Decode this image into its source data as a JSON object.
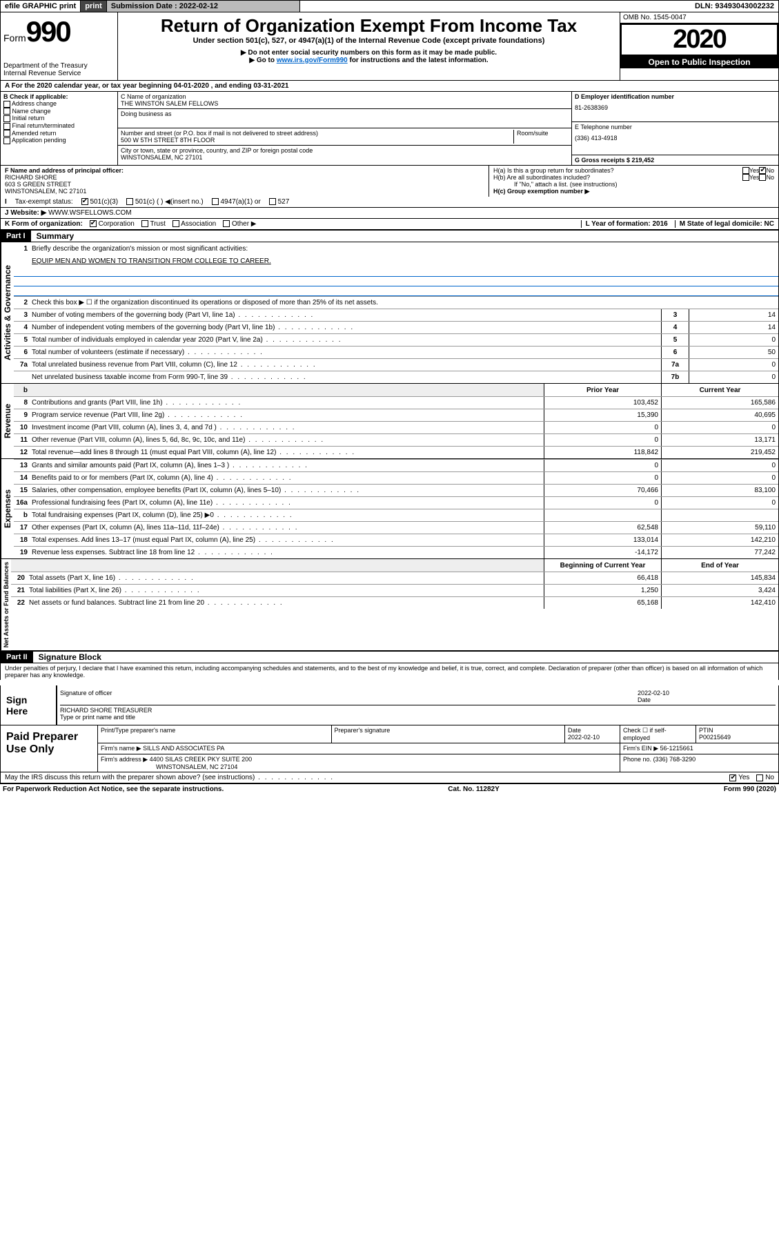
{
  "topbar": {
    "efile": "efile GRAPHIC print",
    "subdate_label": "Submission Date : 2022-02-12",
    "dln": "DLN: 93493043002232"
  },
  "header": {
    "form_label": "Form",
    "form_num": "990",
    "dept": "Department of the Treasury",
    "irs": "Internal Revenue Service",
    "title": "Return of Organization Exempt From Income Tax",
    "subtitle": "Under section 501(c), 527, or 4947(a)(1) of the Internal Revenue Code (except private foundations)",
    "instr1": "▶ Do not enter social security numbers on this form as it may be made public.",
    "instr2_pre": "▶ Go to ",
    "instr2_link": "www.irs.gov/Form990",
    "instr2_post": " for instructions and the latest information.",
    "omb": "OMB No. 1545-0047",
    "year": "2020",
    "open": "Open to Public Inspection"
  },
  "period": {
    "line": "For the 2020 calendar year, or tax year beginning 04-01-2020    , and ending 03-31-2021"
  },
  "boxB": {
    "label": "B Check if applicable:",
    "items": [
      "Address change",
      "Name change",
      "Initial return",
      "Final return/terminated",
      "Amended return",
      "Application pending"
    ]
  },
  "boxC": {
    "name_label": "C Name of organization",
    "name": "THE WINSTON SALEM FELLOWS",
    "dba_label": "Doing business as",
    "addr_label": "Number and street (or P.O. box if mail is not delivered to street address)",
    "room_label": "Room/suite",
    "addr": "500 W 5TH STREET 8TH FLOOR",
    "city_label": "City or town, state or province, country, and ZIP or foreign postal code",
    "city": "WINSTONSALEM, NC  27101"
  },
  "boxD": {
    "label": "D Employer identification number",
    "val": "81-2638369"
  },
  "boxE": {
    "label": "E Telephone number",
    "val": "(336) 413-4918"
  },
  "boxG": {
    "label": "G Gross receipts $ 219,452"
  },
  "boxF": {
    "label": "F  Name and address of principal officer:",
    "name": "RICHARD SHORE",
    "addr1": "603 S GREEN STREET",
    "addr2": "WINSTONSALEM, NC  27101"
  },
  "boxH": {
    "ha": "H(a)  Is this a group return for subordinates?",
    "hb": "H(b)  Are all subordinates included?",
    "hb_note": "If \"No,\" attach a list. (see instructions)",
    "hc": "H(c)  Group exemption number ▶",
    "yes": "Yes",
    "no": "No"
  },
  "boxI": {
    "label": "Tax-exempt status:",
    "opts": [
      "501(c)(3)",
      "501(c) (  ) ◀(insert no.)",
      "4947(a)(1) or",
      "527"
    ]
  },
  "boxJ": {
    "label": "J    Website: ▶",
    "val": "WWW.WSFELLOWS.COM"
  },
  "boxK": {
    "label": "K Form of organization:",
    "opts": [
      "Corporation",
      "Trust",
      "Association",
      "Other ▶"
    ]
  },
  "boxL": {
    "label": "L Year of formation: 2016"
  },
  "boxM": {
    "label": "M State of legal domicile: NC"
  },
  "part1": {
    "label": "Part I",
    "title": "Summary",
    "side1": "Activities & Governance",
    "side2": "Revenue",
    "side3": "Expenses",
    "side4": "Net Assets or Fund Balances",
    "l1": "Briefly describe the organization's mission or most significant activities:",
    "l1val": "EQUIP MEN AND WOMEN TO TRANSITION FROM COLLEGE TO CAREER.",
    "l2": "Check this box ▶ ☐  if the organization discontinued its operations or disposed of more than 25% of its net assets.",
    "rows_gov": [
      {
        "n": "3",
        "t": "Number of voting members of the governing body (Part VI, line 1a)",
        "c": "3",
        "v": "14"
      },
      {
        "n": "4",
        "t": "Number of independent voting members of the governing body (Part VI, line 1b)",
        "c": "4",
        "v": "14"
      },
      {
        "n": "5",
        "t": "Total number of individuals employed in calendar year 2020 (Part V, line 2a)",
        "c": "5",
        "v": "0"
      },
      {
        "n": "6",
        "t": "Total number of volunteers (estimate if necessary)",
        "c": "6",
        "v": "50"
      },
      {
        "n": "7a",
        "t": "Total unrelated business revenue from Part VIII, column (C), line 12",
        "c": "7a",
        "v": "0"
      },
      {
        "n": "  ",
        "t": "Net unrelated business taxable income from Form 990-T, line 39",
        "c": "7b",
        "v": "0"
      }
    ],
    "hdr_prior": "Prior Year",
    "hdr_curr": "Current Year",
    "rows_rev": [
      {
        "n": "8",
        "t": "Contributions and grants (Part VIII, line 1h)",
        "p": "103,452",
        "c": "165,586"
      },
      {
        "n": "9",
        "t": "Program service revenue (Part VIII, line 2g)",
        "p": "15,390",
        "c": "40,695"
      },
      {
        "n": "10",
        "t": "Investment income (Part VIII, column (A), lines 3, 4, and 7d )",
        "p": "0",
        "c": "0"
      },
      {
        "n": "11",
        "t": "Other revenue (Part VIII, column (A), lines 5, 6d, 8c, 9c, 10c, and 11e)",
        "p": "0",
        "c": "13,171"
      },
      {
        "n": "12",
        "t": "Total revenue—add lines 8 through 11 (must equal Part VIII, column (A), line 12)",
        "p": "118,842",
        "c": "219,452"
      }
    ],
    "rows_exp": [
      {
        "n": "13",
        "t": "Grants and similar amounts paid (Part IX, column (A), lines 1–3 )",
        "p": "0",
        "c": "0"
      },
      {
        "n": "14",
        "t": "Benefits paid to or for members (Part IX, column (A), line 4)",
        "p": "0",
        "c": "0"
      },
      {
        "n": "15",
        "t": "Salaries, other compensation, employee benefits (Part IX, column (A), lines 5–10)",
        "p": "70,466",
        "c": "83,100"
      },
      {
        "n": "16a",
        "t": "Professional fundraising fees (Part IX, column (A), line 11e)",
        "p": "0",
        "c": "0"
      },
      {
        "n": "b",
        "t": "Total fundraising expenses (Part IX, column (D), line 25) ▶0",
        "p": "",
        "c": "",
        "shaded": true
      },
      {
        "n": "17",
        "t": "Other expenses (Part IX, column (A), lines 11a–11d, 11f–24e)",
        "p": "62,548",
        "c": "59,110"
      },
      {
        "n": "18",
        "t": "Total expenses. Add lines 13–17 (must equal Part IX, column (A), line 25)",
        "p": "133,014",
        "c": "142,210"
      },
      {
        "n": "19",
        "t": "Revenue less expenses. Subtract line 18 from line 12",
        "p": "-14,172",
        "c": "77,242"
      }
    ],
    "hdr_beg": "Beginning of Current Year",
    "hdr_end": "End of Year",
    "rows_net": [
      {
        "n": "20",
        "t": "Total assets (Part X, line 16)",
        "p": "66,418",
        "c": "145,834"
      },
      {
        "n": "21",
        "t": "Total liabilities (Part X, line 26)",
        "p": "1,250",
        "c": "3,424"
      },
      {
        "n": "22",
        "t": "Net assets or fund balances. Subtract line 21 from line 20",
        "p": "65,168",
        "c": "142,410"
      }
    ]
  },
  "part2": {
    "label": "Part II",
    "title": "Signature Block",
    "penalty": "Under penalties of perjury, I declare that I have examined this return, including accompanying schedules and statements, and to the best of my knowledge and belief, it is true, correct, and complete. Declaration of preparer (other than officer) is based on all information of which preparer has any knowledge."
  },
  "sign": {
    "label": "Sign Here",
    "sig_label": "Signature of officer",
    "date_label": "Date",
    "date": "2022-02-10",
    "name": "RICHARD SHORE TREASURER",
    "name_label": "Type or print name and title"
  },
  "prep": {
    "label": "Paid Preparer Use Only",
    "h1": "Print/Type preparer's name",
    "h2": "Preparer's signature",
    "h3": "Date",
    "h3v": "2022-02-10",
    "h4": "Check ☐ if self-employed",
    "h5": "PTIN",
    "h5v": "P00215649",
    "firm_label": "Firm's name    ▶",
    "firm": "SILLS AND ASSOCIATES PA",
    "ein_label": "Firm's EIN ▶",
    "ein": "56-1215661",
    "addr_label": "Firm's address ▶",
    "addr1": "4400 SILAS CREEK PKY SUITE 200",
    "addr2": "WINSTONSALEM, NC  27104",
    "phone_label": "Phone no.",
    "phone": "(336) 768-3290",
    "discuss": "May the IRS discuss this return with the preparer shown above? (see instructions)",
    "yes": "Yes",
    "no": "No"
  },
  "footer": {
    "left": "For Paperwork Reduction Act Notice, see the separate instructions.",
    "mid": "Cat. No. 11282Y",
    "right": "Form 990 (2020)"
  }
}
